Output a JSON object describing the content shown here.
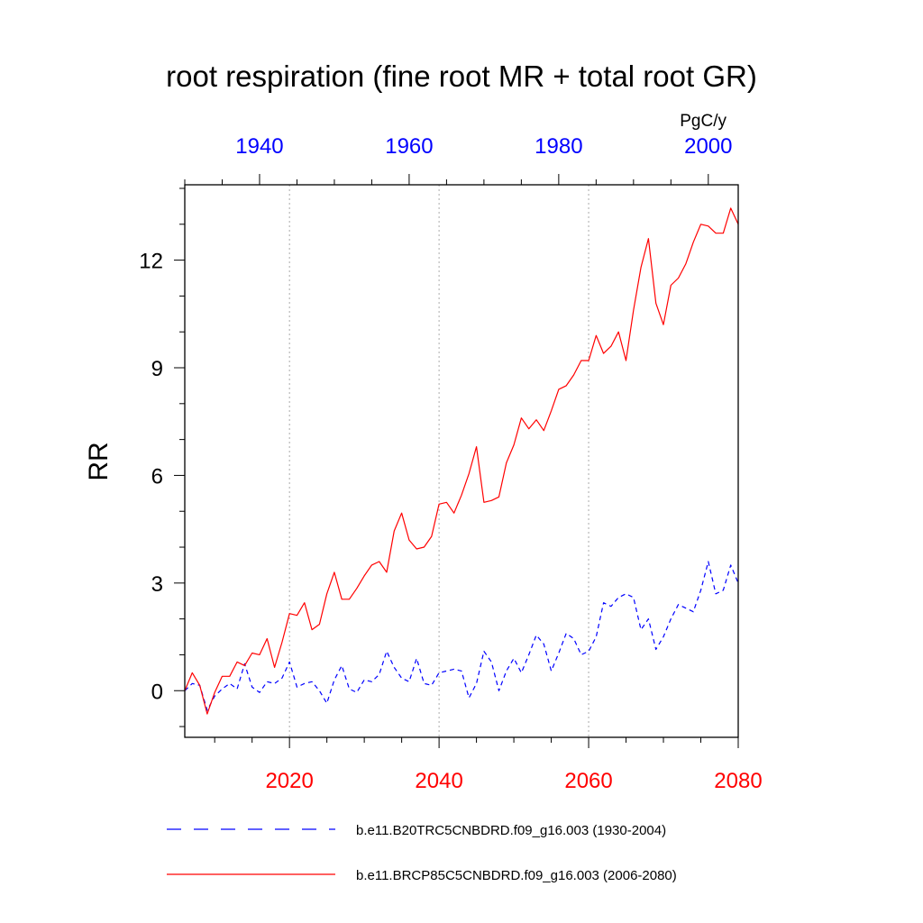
{
  "chart_data": {
    "type": "line",
    "title": "root respiration (fine root MR + total root GR)",
    "ylabel": "RR",
    "units": "PgC/y",
    "ylim": [
      -1.3,
      14.1
    ],
    "yticks": [
      0,
      3,
      6,
      9,
      12
    ],
    "ytick_labels": [
      "0",
      "3",
      "6",
      "9",
      "12"
    ],
    "bottom_axis": {
      "range": [
        2006,
        2080
      ],
      "ticks": [
        2020,
        2040,
        2060,
        2080
      ],
      "tick_labels": [
        "2020",
        "2040",
        "2060",
        "2080"
      ],
      "color": "#ff0000"
    },
    "top_axis": {
      "range": [
        1930,
        2004
      ],
      "ticks": [
        1940,
        1960,
        1980,
        2000
      ],
      "tick_labels": [
        "1940",
        "1960",
        "1980",
        "2000"
      ],
      "color": "#0000ff"
    },
    "grid": "vertical dotted at bottom-axis major ticks",
    "legend_position": "bottom",
    "series": [
      {
        "name": "b.e11.B20TRC5CNBDRD.f09_g16.003 (1930-2004)",
        "color": "#0000ff",
        "style": "dashed",
        "axis": "top",
        "x_start": 1930,
        "values": [
          0.0,
          0.2,
          0.15,
          -0.55,
          -0.15,
          0.05,
          0.2,
          0.05,
          0.75,
          0.1,
          -0.05,
          0.25,
          0.2,
          0.35,
          0.8,
          0.1,
          0.2,
          0.25,
          0.0,
          -0.35,
          0.3,
          0.7,
          0.05,
          -0.05,
          0.3,
          0.25,
          0.45,
          1.1,
          0.65,
          0.35,
          0.25,
          0.9,
          0.2,
          0.15,
          0.5,
          0.55,
          0.6,
          0.55,
          -0.2,
          0.2,
          1.1,
          0.8,
          0.0,
          0.55,
          0.9,
          0.5,
          1.0,
          1.55,
          1.3,
          0.55,
          1.05,
          1.6,
          1.45,
          1.0,
          1.1,
          1.5,
          2.45,
          2.35,
          2.6,
          2.7,
          2.6,
          1.7,
          2.0,
          1.15,
          1.5,
          2.0,
          2.4,
          2.3,
          2.2,
          2.8,
          3.6,
          2.7,
          2.8,
          3.5,
          3.0
        ]
      },
      {
        "name": "b.e11.BRCP85C5CNBDRD.f09_g16.003 (2006-2080)",
        "color": "#ff0000",
        "style": "solid",
        "axis": "bottom",
        "x_start": 2006,
        "values": [
          0.0,
          0.5,
          0.15,
          -0.65,
          -0.05,
          0.4,
          0.4,
          0.8,
          0.7,
          1.05,
          1.0,
          1.45,
          0.65,
          1.35,
          2.15,
          2.1,
          2.45,
          1.7,
          1.85,
          2.7,
          3.3,
          2.55,
          2.55,
          2.85,
          3.2,
          3.5,
          3.6,
          3.3,
          4.45,
          4.95,
          4.2,
          3.95,
          4.0,
          4.3,
          5.2,
          5.25,
          4.95,
          5.45,
          6.05,
          6.8,
          5.25,
          5.3,
          5.4,
          6.35,
          6.85,
          7.6,
          7.3,
          7.55,
          7.25,
          7.8,
          8.4,
          8.5,
          8.8,
          9.2,
          9.2,
          9.9,
          9.4,
          9.6,
          10.0,
          9.2,
          10.6,
          11.8,
          12.6,
          10.8,
          10.2,
          11.3,
          11.5,
          11.9,
          12.5,
          13.0,
          12.95,
          12.75,
          12.75,
          13.45,
          13.0
        ]
      }
    ]
  }
}
